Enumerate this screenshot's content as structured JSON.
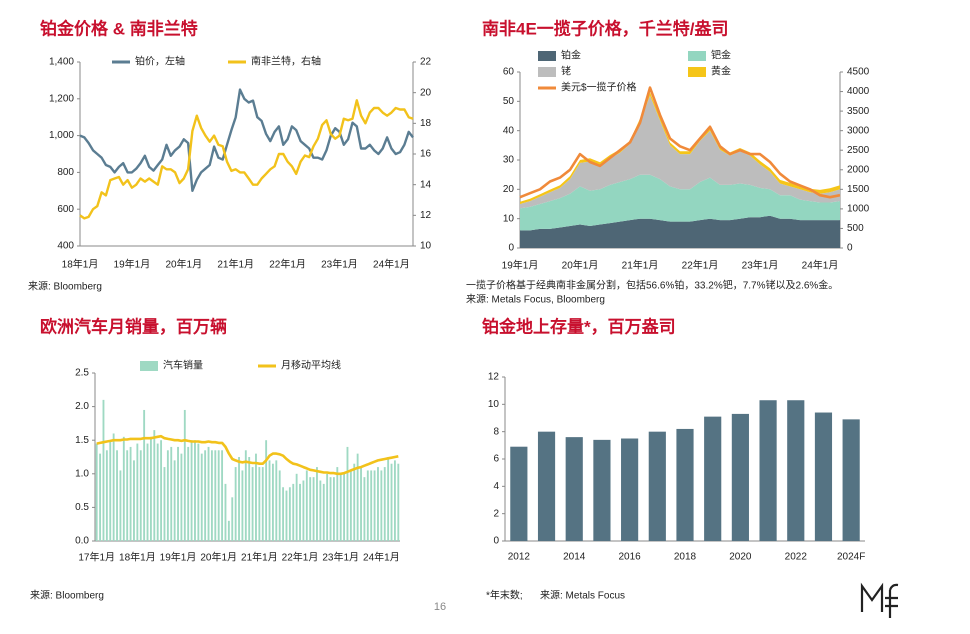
{
  "chart_data": [
    {
      "type": "line",
      "title": "铂金价格 & 南非兰特",
      "categories": [
        "18年1月",
        null,
        null,
        null,
        null,
        null,
        null,
        null,
        null,
        null,
        null,
        null,
        "19年1月",
        null,
        null,
        null,
        null,
        null,
        null,
        null,
        null,
        null,
        null,
        null,
        "20年1月",
        null,
        null,
        null,
        null,
        null,
        null,
        null,
        null,
        null,
        null,
        null,
        "21年1月",
        null,
        null,
        null,
        null,
        null,
        null,
        null,
        null,
        null,
        null,
        null,
        "22年1月",
        null,
        null,
        null,
        null,
        null,
        null,
        null,
        null,
        null,
        null,
        null,
        "23年1月",
        null,
        null,
        null,
        null,
        null,
        null,
        null,
        null,
        null,
        null,
        null,
        "24年1月",
        null,
        null,
        null,
        null,
        null
      ],
      "series": [
        {
          "name": "铂价，左轴",
          "color": "#5b7d92",
          "values": [
            1000,
            990,
            960,
            920,
            900,
            880,
            840,
            830,
            800,
            830,
            850,
            800,
            800,
            820,
            850,
            890,
            830,
            810,
            840,
            870,
            950,
            890,
            920,
            940,
            980,
            960,
            700,
            760,
            800,
            820,
            840,
            940,
            880,
            870,
            950,
            1030,
            1100,
            1250,
            1200,
            1180,
            1190,
            1100,
            1080,
            1010,
            970,
            1020,
            1050,
            950,
            980,
            1050,
            1030,
            970,
            950,
            930,
            880,
            880,
            870,
            920,
            1000,
            1040,
            1020,
            950,
            980,
            1070,
            1050,
            930,
            930,
            950,
            920,
            900,
            930,
            990,
            930,
            900,
            910,
            950,
            1020,
            990
          ]
        },
        {
          "name": "南非兰特，右轴",
          "color": "#f2c21b",
          "axis": "y2",
          "values": [
            12.0,
            11.8,
            11.9,
            12.4,
            12.6,
            13.5,
            13.3,
            14.3,
            14.4,
            14.5,
            14.0,
            14.3,
            13.8,
            14.0,
            14.4,
            14.2,
            14.4,
            14.2,
            14.0,
            15.2,
            15.0,
            15.0,
            14.8,
            14.1,
            14.4,
            15.0,
            17.5,
            18.5,
            17.7,
            17.2,
            16.8,
            17.2,
            16.6,
            16.5,
            15.5,
            14.9,
            15.0,
            14.8,
            14.8,
            14.4,
            14.0,
            14.0,
            14.4,
            14.7,
            15.0,
            15.2,
            16.0,
            16.0,
            15.5,
            15.2,
            14.7,
            15.5,
            15.9,
            15.8,
            16.5,
            17.0,
            17.9,
            18.2,
            17.3,
            17.0,
            17.2,
            18.3,
            18.2,
            18.3,
            19.5,
            18.5,
            18.0,
            18.7,
            19.0,
            19.0,
            18.7,
            18.5,
            18.7,
            19.0,
            18.9,
            18.9,
            18.4,
            18.3
          ]
        }
      ],
      "ylim": [
        400,
        1400
      ],
      "yticks": [
        400,
        600,
        800,
        {
          "value": 1000,
          "label": "1,000"
        },
        {
          "value": 1200,
          "label": "1,200"
        },
        {
          "value": 1400,
          "label": "1,400"
        }
      ],
      "y2lim": [
        10,
        22
      ],
      "y2ticks": [
        10,
        12,
        14,
        16,
        18,
        20,
        22
      ],
      "source": "来源: Bloomberg"
    },
    {
      "type": "area",
      "title": "南非4E一揽子价格，千兰特/盎司",
      "categories": [
        "19年1月",
        null,
        null,
        null,
        null,
        null,
        "20年1月",
        null,
        null,
        null,
        null,
        null,
        "21年1月",
        null,
        null,
        null,
        null,
        null,
        "22年1月",
        null,
        null,
        null,
        null,
        null,
        "23年1月",
        null,
        null,
        null,
        null,
        null,
        "24年1月",
        null,
        null
      ],
      "series": [
        {
          "name": "铂金",
          "color": "#4e6675",
          "values": [
            6,
            6,
            6.5,
            6.5,
            7,
            7.5,
            8,
            7.5,
            8,
            8.5,
            9,
            9.5,
            10,
            10,
            9.5,
            9,
            9,
            9,
            9.5,
            10,
            9.5,
            9.5,
            10,
            10.5,
            10.5,
            11,
            10,
            10,
            9.5,
            9.5,
            9.5,
            9.5,
            9.5
          ]
        },
        {
          "name": "钯金",
          "color": "#93d6c0",
          "values": [
            7.5,
            8,
            8.5,
            9.5,
            10,
            11,
            13,
            12,
            12,
            13,
            13.5,
            14,
            15,
            15,
            14,
            12,
            11,
            11,
            13,
            14,
            12,
            12,
            12,
            11,
            10,
            9,
            8,
            8,
            7,
            6.5,
            6,
            6,
            6.5
          ]
        },
        {
          "name": "铑",
          "color": "#bdbdbd",
          "values": [
            1.5,
            2,
            2.5,
            3,
            3.5,
            5,
            8,
            10,
            8,
            9,
            10,
            12,
            18,
            27,
            20,
            14,
            12,
            12,
            14,
            16,
            12,
            10,
            11,
            10,
            8,
            6,
            4,
            3,
            3.5,
            3,
            3,
            3.5,
            4
          ]
        },
        {
          "name": "黄金",
          "color": "#f5c518",
          "values": [
            0.8,
            0.8,
            0.8,
            0.9,
            0.9,
            1,
            1,
            1.1,
            1.2,
            1.2,
            1.1,
            1.1,
            1.1,
            1.1,
            1,
            1,
            1,
            1,
            1,
            1.1,
            1,
            1.1,
            1.1,
            1.1,
            1.2,
            1.2,
            1.2,
            1.2,
            1.2,
            1.2,
            1.3,
            1.4,
            1.4
          ]
        },
        {
          "name": "美元$一揽子价格",
          "color": "#f08a3a",
          "type": "line",
          "axis": "y2",
          "values": [
            1300,
            1400,
            1500,
            1700,
            1800,
            2000,
            2400,
            2200,
            2100,
            2300,
            2500,
            2700,
            3200,
            4100,
            3400,
            2800,
            2600,
            2500,
            2800,
            3100,
            2600,
            2400,
            2500,
            2400,
            2400,
            2200,
            1900,
            1700,
            1600,
            1500,
            1350,
            1300,
            1350
          ]
        }
      ],
      "ylim": [
        0,
        60
      ],
      "yticks": [
        0,
        10,
        20,
        30,
        40,
        50,
        60
      ],
      "y2lim": [
        0,
        4500
      ],
      "y2ticks": [
        0,
        500,
        1000,
        1500,
        2000,
        2500,
        3000,
        3500,
        4000,
        4500
      ],
      "note": "一揽子价格基于经典南非金属分割，包括56.6%铂，33.2%钯，7.7%铑以及2.6%金。",
      "source": "来源: Metals Focus, Bloomberg"
    },
    {
      "type": "bar",
      "title": "欧洲汽车月销量，百万辆",
      "categories": [
        "17年1月",
        null,
        null,
        null,
        null,
        null,
        null,
        null,
        null,
        null,
        null,
        null,
        "18年1月",
        null,
        null,
        null,
        null,
        null,
        null,
        null,
        null,
        null,
        null,
        null,
        "19年1月",
        null,
        null,
        null,
        null,
        null,
        null,
        null,
        null,
        null,
        null,
        null,
        "20年1月",
        null,
        null,
        null,
        null,
        null,
        null,
        null,
        null,
        null,
        null,
        null,
        "21年1月",
        null,
        null,
        null,
        null,
        null,
        null,
        null,
        null,
        null,
        null,
        null,
        "22年1月",
        null,
        null,
        null,
        null,
        null,
        null,
        null,
        null,
        null,
        null,
        null,
        "23年1月",
        null,
        null,
        null,
        null,
        null,
        null,
        null,
        null,
        null,
        null,
        null,
        "24年1月",
        null,
        null,
        null,
        null,
        null
      ],
      "series": [
        {
          "name": "汽车销量",
          "color": "#9fd9c3",
          "type": "bar",
          "values": [
            1.45,
            1.3,
            2.1,
            1.35,
            1.5,
            1.6,
            1.35,
            1.05,
            1.55,
            1.35,
            1.4,
            1.2,
            1.45,
            1.35,
            1.95,
            1.45,
            1.55,
            1.65,
            1.45,
            1.5,
            1.1,
            1.35,
            1.4,
            1.2,
            1.4,
            1.3,
            1.95,
            1.4,
            1.5,
            1.5,
            1.45,
            1.3,
            1.35,
            1.4,
            1.35,
            1.35,
            1.35,
            1.35,
            0.85,
            0.3,
            0.65,
            1.1,
            1.25,
            1.05,
            1.35,
            1.25,
            1.1,
            1.3,
            1.1,
            1.1,
            1.5,
            1.2,
            1.15,
            1.2,
            1.05,
            0.8,
            0.75,
            0.8,
            0.85,
            1.0,
            0.85,
            0.9,
            1.05,
            0.95,
            0.95,
            1.1,
            0.9,
            0.85,
            1.0,
            0.95,
            0.95,
            1.1,
            1.0,
            1.0,
            1.4,
            1.05,
            1.15,
            1.3,
            1.1,
            0.95,
            1.05,
            1.05,
            1.05,
            1.1,
            1.05,
            1.1,
            1.25,
            1.15,
            1.2,
            1.15
          ]
        },
        {
          "name": "月移动平均线",
          "color": "#f2c21b",
          "type": "line",
          "values": [
            1.45,
            1.46,
            1.47,
            1.48,
            1.49,
            1.5,
            1.5,
            1.5,
            1.51,
            1.51,
            1.52,
            1.52,
            1.52,
            1.52,
            1.53,
            1.53,
            1.53,
            1.54,
            1.55,
            1.56,
            1.53,
            1.52,
            1.51,
            1.5,
            1.5,
            1.49,
            1.5,
            1.49,
            1.48,
            1.48,
            1.48,
            1.47,
            1.47,
            1.48,
            1.47,
            1.47,
            1.46,
            1.46,
            1.4,
            1.3,
            1.22,
            1.2,
            1.18,
            1.17,
            1.18,
            1.17,
            1.16,
            1.16,
            1.15,
            1.15,
            1.2,
            1.27,
            1.3,
            1.3,
            1.29,
            1.27,
            1.22,
            1.18,
            1.15,
            1.14,
            1.12,
            1.1,
            1.08,
            1.06,
            1.05,
            1.04,
            1.03,
            1.02,
            1.02,
            1.01,
            1.01,
            1.0,
            1.0,
            1.01,
            1.03,
            1.05,
            1.07,
            1.09,
            1.1,
            1.12,
            1.14,
            1.16,
            1.18,
            1.2,
            1.21,
            1.22,
            1.23,
            1.24,
            1.25,
            1.26
          ]
        }
      ],
      "ylim": [
        0,
        2.5
      ],
      "yticks": [
        {
          "value": 0,
          "label": "0.0"
        },
        0.5,
        {
          "value": 1,
          "label": "1.0"
        },
        1.5,
        {
          "value": 2,
          "label": "2.0"
        },
        2.5
      ],
      "source": "来源: Bloomberg"
    },
    {
      "type": "bar",
      "title": "铂金地上存量*，百万盎司",
      "categories": [
        "2012",
        null,
        "2014",
        null,
        "2016",
        null,
        "2018",
        null,
        "2020",
        null,
        "2022",
        null,
        "2024F"
      ],
      "values": [
        6.9,
        8.0,
        7.6,
        7.4,
        7.5,
        8.0,
        8.2,
        9.1,
        9.3,
        10.3,
        10.3,
        9.4,
        8.9
      ],
      "color": "#557383",
      "ylim": [
        0,
        12
      ],
      "yticks": [
        0,
        2,
        4,
        6,
        8,
        10,
        12
      ],
      "note": "*年末数;",
      "source": "来源: Metals Focus"
    }
  ],
  "page_number": "16"
}
